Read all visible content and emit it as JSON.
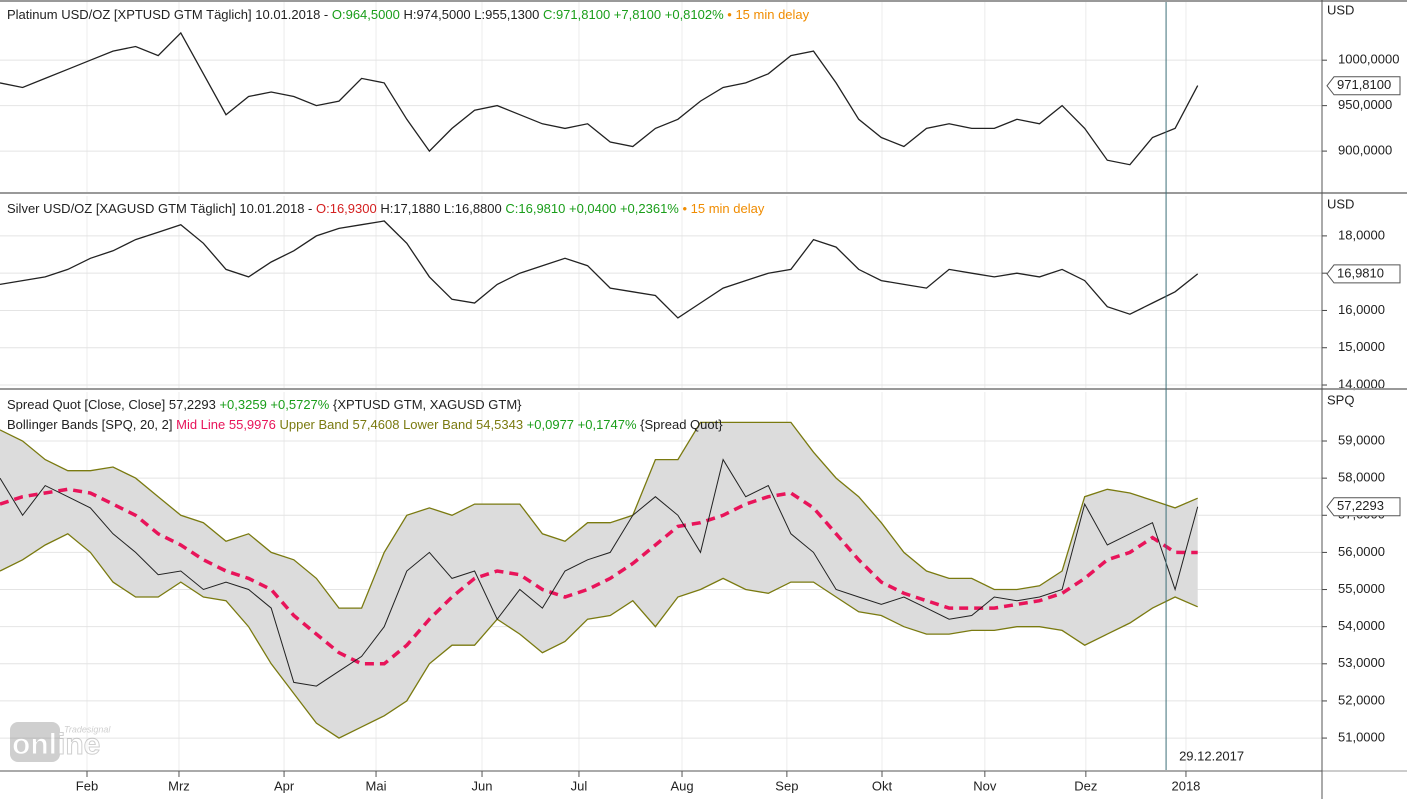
{
  "chart_data": [
    {
      "type": "line",
      "legend": [
        [
          {
            "text": "Platinum USD/OZ [XPTUSD GTM Täglich] 10.01.2018 - ",
            "color": "#222222"
          },
          {
            "text": "O:964,5000",
            "color": "#1a9e1a"
          },
          {
            "text": " H:974,5000 L:955,1300 ",
            "color": "#222222"
          },
          {
            "text": "C:971,8100 +7,8100 +0,8102%",
            "color": "#1a9e1a"
          },
          {
            "text": " • 15 min delay",
            "color": "#f08c00"
          }
        ]
      ],
      "unit": "USD",
      "xlim": [
        0,
        58.5
      ],
      "ylim": [
        855,
        1064
      ],
      "yticks": [
        {
          "value": 900,
          "label": "900,0000"
        },
        {
          "value": 950,
          "label": "950,0000"
        },
        {
          "value": 1000,
          "label": "1000,0000"
        }
      ],
      "last_label": {
        "value": 971.81,
        "label": "971,8100"
      },
      "x": [
        0,
        1,
        2,
        3,
        4,
        5,
        6,
        7,
        8,
        9,
        10,
        11,
        12,
        13,
        14,
        15,
        16,
        17,
        18,
        19,
        20,
        21,
        22,
        23,
        24,
        25,
        26,
        27,
        28,
        29,
        30,
        31,
        32,
        33,
        34,
        35,
        36,
        37,
        38,
        39,
        40,
        41,
        42,
        43,
        44,
        45,
        46,
        47,
        48,
        49,
        50,
        51,
        52,
        53
      ],
      "series": [
        {
          "name": "Platinum USD/OZ",
          "color": "#222222",
          "values": [
            975,
            970,
            980,
            990,
            1000,
            1010,
            1015,
            1005,
            1030,
            985,
            940,
            960,
            965,
            960,
            950,
            955,
            980,
            975,
            935,
            900,
            925,
            945,
            950,
            940,
            930,
            925,
            930,
            910,
            905,
            925,
            935,
            955,
            970,
            975,
            985,
            1005,
            1010,
            975,
            935,
            915,
            905,
            925,
            930,
            925,
            925,
            935,
            930,
            950,
            925,
            890,
            885,
            915,
            925,
            972
          ]
        }
      ]
    },
    {
      "type": "line",
      "legend": [
        [
          {
            "text": "Silver USD/OZ [XAGUSD GTM Täglich] 10.01.2018 - ",
            "color": "#222222"
          },
          {
            "text": "O:16,9300",
            "color": "#d42020"
          },
          {
            "text": " H:17,1880 L:16,8800 ",
            "color": "#222222"
          },
          {
            "text": "C:16,9810 +0,0400 +0,2361%",
            "color": "#1a9e1a"
          },
          {
            "text": " • 15 min delay",
            "color": "#f08c00"
          }
        ]
      ],
      "unit": "USD",
      "xlim": [
        0,
        58.5
      ],
      "ylim": [
        13.92,
        19.07
      ],
      "yticks": [
        {
          "value": 14,
          "label": "14,0000"
        },
        {
          "value": 15,
          "label": "15,0000"
        },
        {
          "value": 16,
          "label": "16,0000"
        },
        {
          "value": 17,
          "label": "17,0000"
        },
        {
          "value": 18,
          "label": "18,0000"
        }
      ],
      "last_label": {
        "value": 16.981,
        "label": "16,9810"
      },
      "x": [
        0,
        1,
        2,
        3,
        4,
        5,
        6,
        7,
        8,
        9,
        10,
        11,
        12,
        13,
        14,
        15,
        16,
        17,
        18,
        19,
        20,
        21,
        22,
        23,
        24,
        25,
        26,
        27,
        28,
        29,
        30,
        31,
        32,
        33,
        34,
        35,
        36,
        37,
        38,
        39,
        40,
        41,
        42,
        43,
        44,
        45,
        46,
        47,
        48,
        49,
        50,
        51,
        52,
        53
      ],
      "series": [
        {
          "name": "Silver USD/OZ",
          "color": "#222222",
          "values": [
            16.7,
            16.8,
            16.9,
            17.1,
            17.4,
            17.6,
            17.9,
            18.1,
            18.3,
            17.8,
            17.1,
            16.9,
            17.3,
            17.6,
            18.0,
            18.2,
            18.3,
            18.4,
            17.8,
            16.9,
            16.3,
            16.2,
            16.7,
            17.0,
            17.2,
            17.4,
            17.2,
            16.6,
            16.5,
            16.4,
            15.8,
            16.2,
            16.6,
            16.8,
            17.0,
            17.1,
            17.9,
            17.7,
            17.1,
            16.8,
            16.7,
            16.6,
            17.1,
            17.0,
            16.9,
            17.0,
            16.9,
            17.1,
            16.8,
            16.1,
            15.9,
            16.2,
            16.5,
            16.98
          ]
        }
      ]
    },
    {
      "type": "bollinger",
      "legend": [
        [
          {
            "text": "Spread Quot [Close, Close] 57,2293 ",
            "color": "#222222"
          },
          {
            "text": "+0,3259 +0,5727%",
            "color": "#1a9e1a"
          },
          {
            "text": " {XPTUSD GTM, XAGUSD GTM}",
            "color": "#222222"
          }
        ],
        [
          {
            "text": "Bollinger Bands [SPQ, 20, 2] ",
            "color": "#222222"
          },
          {
            "text": "Mid Line 55,9976",
            "color": "#e8145a"
          },
          {
            "text": " Upper Band 57,4608 Lower Band 54,5343",
            "color": "#7a7a10"
          },
          {
            "text": " +0,0977 +0,1747%",
            "color": "#1a9e1a"
          },
          {
            "text": " {Spread Quot}",
            "color": "#222222"
          }
        ]
      ],
      "unit": "SPQ",
      "xlim": [
        0,
        58.5
      ],
      "ylim": [
        50.14,
        60.32
      ],
      "yticks": [
        {
          "value": 51,
          "label": "51,0000"
        },
        {
          "value": 52,
          "label": "52,0000"
        },
        {
          "value": 53,
          "label": "53,0000"
        },
        {
          "value": 54,
          "label": "54,0000"
        },
        {
          "value": 55,
          "label": "55,0000"
        },
        {
          "value": 56,
          "label": "56,0000"
        },
        {
          "value": 57,
          "label": "57,0000"
        },
        {
          "value": 58,
          "label": "58,0000"
        },
        {
          "value": 59,
          "label": "59,0000"
        }
      ],
      "last_label": {
        "value": 57.2293,
        "label": "57,2293"
      },
      "xticks": [
        {
          "value": 3.85,
          "label": "Feb"
        },
        {
          "value": 7.92,
          "label": "Mrz"
        },
        {
          "value": 12.57,
          "label": "Apr"
        },
        {
          "value": 16.64,
          "label": "Mai"
        },
        {
          "value": 21.33,
          "label": "Jun"
        },
        {
          "value": 25.62,
          "label": "Jul"
        },
        {
          "value": 30.18,
          "label": "Aug"
        },
        {
          "value": 34.82,
          "label": "Sep"
        },
        {
          "value": 39.03,
          "label": "Okt"
        },
        {
          "value": 43.58,
          "label": "Nov"
        },
        {
          "value": 48.05,
          "label": "Dez"
        },
        {
          "value": 52.48,
          "label": "2018"
        }
      ],
      "marker": {
        "x": 51.6,
        "label": "29.12.2017"
      },
      "watermark": {
        "brand": "Tradesignal",
        "word": "online"
      },
      "x": [
        0,
        1,
        2,
        3,
        4,
        5,
        6,
        7,
        8,
        9,
        10,
        11,
        12,
        13,
        14,
        15,
        16,
        17,
        18,
        19,
        20,
        21,
        22,
        23,
        24,
        25,
        26,
        27,
        28,
        29,
        30,
        31,
        32,
        33,
        34,
        35,
        36,
        37,
        38,
        39,
        40,
        41,
        42,
        43,
        44,
        45,
        46,
        47,
        48,
        49,
        50,
        51,
        52,
        53
      ],
      "series": [
        {
          "name": "Spread Quot",
          "color": "#222222",
          "values": [
            58.0,
            57.0,
            57.8,
            57.5,
            57.2,
            56.5,
            56.0,
            55.4,
            55.5,
            55.0,
            55.2,
            55.0,
            54.5,
            52.5,
            52.4,
            52.8,
            53.2,
            54.0,
            55.5,
            56.0,
            55.3,
            55.5,
            54.2,
            55.0,
            54.5,
            55.5,
            55.8,
            56.0,
            57.0,
            57.5,
            57.0,
            56.0,
            58.5,
            57.5,
            57.8,
            56.5,
            56.0,
            55.0,
            54.8,
            54.6,
            54.8,
            54.5,
            54.2,
            54.3,
            54.8,
            54.7,
            54.8,
            55.0,
            57.3,
            56.2,
            56.5,
            56.8,
            55.0,
            57.23
          ]
        },
        {
          "name": "Upper Band",
          "color": "#7a7a10",
          "values": [
            59.3,
            59.0,
            58.5,
            58.2,
            58.2,
            58.3,
            58.0,
            57.5,
            57.0,
            56.8,
            56.3,
            56.5,
            56.0,
            55.8,
            55.3,
            54.5,
            54.5,
            56.0,
            57.0,
            57.2,
            57.0,
            57.3,
            57.3,
            57.3,
            56.5,
            56.3,
            56.8,
            56.8,
            57.0,
            58.5,
            58.5,
            59.5,
            59.5,
            59.5,
            59.5,
            59.5,
            58.7,
            58.0,
            57.5,
            56.8,
            56.0,
            55.5,
            55.3,
            55.3,
            55.0,
            55.0,
            55.1,
            55.5,
            57.5,
            57.7,
            57.6,
            57.4,
            57.2,
            57.4608
          ]
        },
        {
          "name": "Mid Line",
          "color": "#e8145a",
          "values": [
            57.3,
            57.5,
            57.6,
            57.7,
            57.6,
            57.3,
            57.0,
            56.5,
            56.2,
            55.8,
            55.5,
            55.3,
            55.0,
            54.3,
            53.8,
            53.3,
            53.0,
            53.0,
            53.5,
            54.2,
            54.8,
            55.3,
            55.5,
            55.4,
            55.0,
            54.8,
            55.0,
            55.3,
            55.7,
            56.2,
            56.7,
            56.8,
            57.0,
            57.3,
            57.5,
            57.6,
            57.2,
            56.5,
            55.8,
            55.2,
            54.9,
            54.7,
            54.5,
            54.5,
            54.5,
            54.6,
            54.7,
            54.9,
            55.3,
            55.8,
            56.0,
            56.4,
            56.0,
            55.9976
          ]
        },
        {
          "name": "Lower Band",
          "color": "#7a7a10",
          "values": [
            55.5,
            55.8,
            56.2,
            56.5,
            56.0,
            55.2,
            54.8,
            54.8,
            55.2,
            54.8,
            54.7,
            54.0,
            53.0,
            52.2,
            51.4,
            51.0,
            51.3,
            51.6,
            52.0,
            53.0,
            53.5,
            53.5,
            54.2,
            53.8,
            53.3,
            53.6,
            54.2,
            54.3,
            54.7,
            54.0,
            54.8,
            55.0,
            55.3,
            55.0,
            54.9,
            55.2,
            55.2,
            54.8,
            54.4,
            54.3,
            54.0,
            53.8,
            53.8,
            53.9,
            53.9,
            54.0,
            54.0,
            53.9,
            53.5,
            53.8,
            54.1,
            54.5,
            54.8,
            54.5343
          ]
        }
      ]
    }
  ]
}
